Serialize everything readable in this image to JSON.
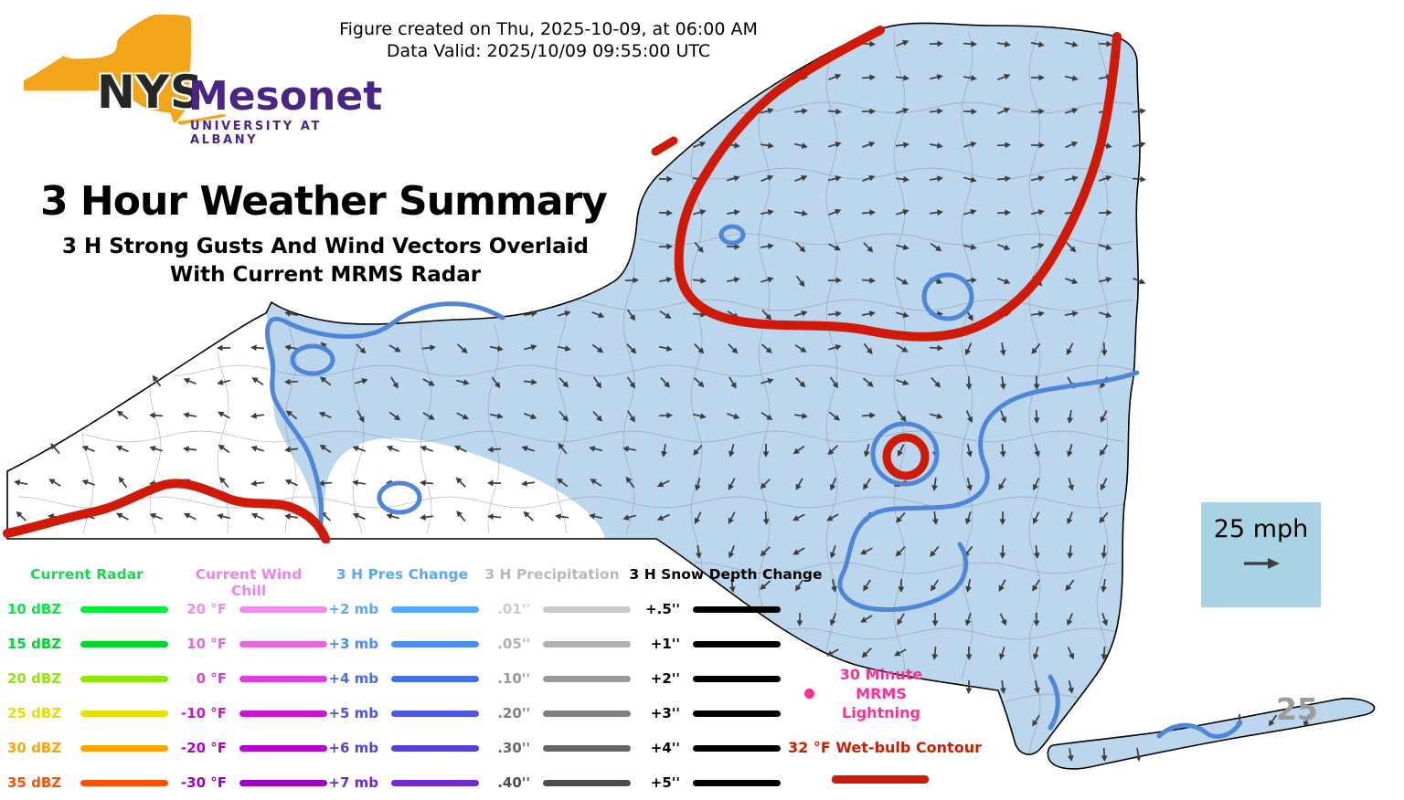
{
  "header": {
    "created": "Figure created on Thu, 2025-10-09, at 06:00 AM",
    "valid": "Data Valid: 2025/10/09 09:55:00 UTC"
  },
  "logo": {
    "nys": "NYS",
    "mesonet": "Mesonet",
    "university": "UNIVERSITY AT ALBANY",
    "colors": {
      "state": "#F2A51A",
      "nys_text": "#262626",
      "purple": "#4b2583"
    }
  },
  "title": {
    "main": "3 Hour Weather Summary",
    "sub1": "3 H Strong Gusts And Wind Vectors Overlaid",
    "sub2": "With Current MRMS Radar"
  },
  "map": {
    "region": "New York State",
    "fill_color": "#bcd6ee",
    "no_data_color": "#ffffff",
    "border_color": "#000000",
    "county_line_color": "#7d7d7d",
    "arrow_color": "#3d3d3d",
    "pres_contour_color": "#4f86d8",
    "wetbulb_contour_color": "#cf1a08",
    "gust_label": "25",
    "gust_label_color": "#9b9b9b"
  },
  "scale_box": {
    "label": "25 mph",
    "bg_color": "#a9d3e5",
    "arrow_color": "#3d3d3d"
  },
  "legend": {
    "radar": {
      "header": "Current Radar",
      "header_color": "#21d354",
      "rows": [
        {
          "label": "10 dBZ",
          "color": "#00ef3c"
        },
        {
          "label": "15 dBZ",
          "color": "#00d62c"
        },
        {
          "label": "20 dBZ",
          "color": "#8fe800"
        },
        {
          "label": "25 dBZ",
          "color": "#e6df00"
        },
        {
          "label": "30 dBZ",
          "color": "#ffa300"
        },
        {
          "label": "35 dBZ",
          "color": "#ff4f00"
        }
      ]
    },
    "wind_chill": {
      "header": "Current Wind Chill",
      "header_color": "#ee82ee",
      "rows": [
        {
          "label": "20 °F",
          "color": "#ee8dee"
        },
        {
          "label": "10 °F",
          "color": "#e667e6"
        },
        {
          "label": "0 °F",
          "color": "#dd3ddd"
        },
        {
          "label": "-10 °F",
          "color": "#cc14cc"
        },
        {
          "label": "-20 °F",
          "color": "#b300cf"
        },
        {
          "label": "-30 °F",
          "color": "#9a00c4"
        }
      ]
    },
    "pres_change": {
      "header": "3 H Pres Change",
      "header_color": "#57a8ff",
      "rows": [
        {
          "label": "+2 mb",
          "color": "#57a8ff"
        },
        {
          "label": "+3 mb",
          "color": "#4b8df2"
        },
        {
          "label": "+4 mb",
          "color": "#4470e4"
        },
        {
          "label": "+5 mb",
          "color": "#4b57dd"
        },
        {
          "label": "+6 mb",
          "color": "#5a3fd6"
        },
        {
          "label": "+7 mb",
          "color": "#6b2bd0"
        }
      ]
    },
    "precip": {
      "header": "3 H Precipitation",
      "header_color": "#b9b9b9",
      "rows": [
        {
          "label": ".01''",
          "color": "#c9c9c9"
        },
        {
          "label": ".05''",
          "color": "#b1b1b1"
        },
        {
          "label": ".10''",
          "color": "#999999"
        },
        {
          "label": ".20''",
          "color": "#7f7f7f"
        },
        {
          "label": ".30''",
          "color": "#666666"
        },
        {
          "label": ".40''",
          "color": "#4d4d4d"
        }
      ]
    },
    "snow": {
      "header": "3 H Snow Depth Change",
      "header_color": "#000000",
      "rows": [
        {
          "label": "+.5''",
          "color": "#000000"
        },
        {
          "label": "+1''",
          "color": "#000000"
        },
        {
          "label": "+2''",
          "color": "#000000"
        },
        {
          "label": "+3''",
          "color": "#000000"
        },
        {
          "label": "+4''",
          "color": "#000000"
        },
        {
          "label": "+5''",
          "color": "#000000"
        }
      ]
    },
    "lightning": {
      "line1": "30 Minute",
      "line2": "MRMS",
      "line3": "Lightning",
      "color": "#ff2f92"
    },
    "wetbulb": {
      "label": "32 °F Wet-bulb Contour",
      "text_color": "#cc1f00",
      "line_color": "#cf1a08"
    }
  }
}
